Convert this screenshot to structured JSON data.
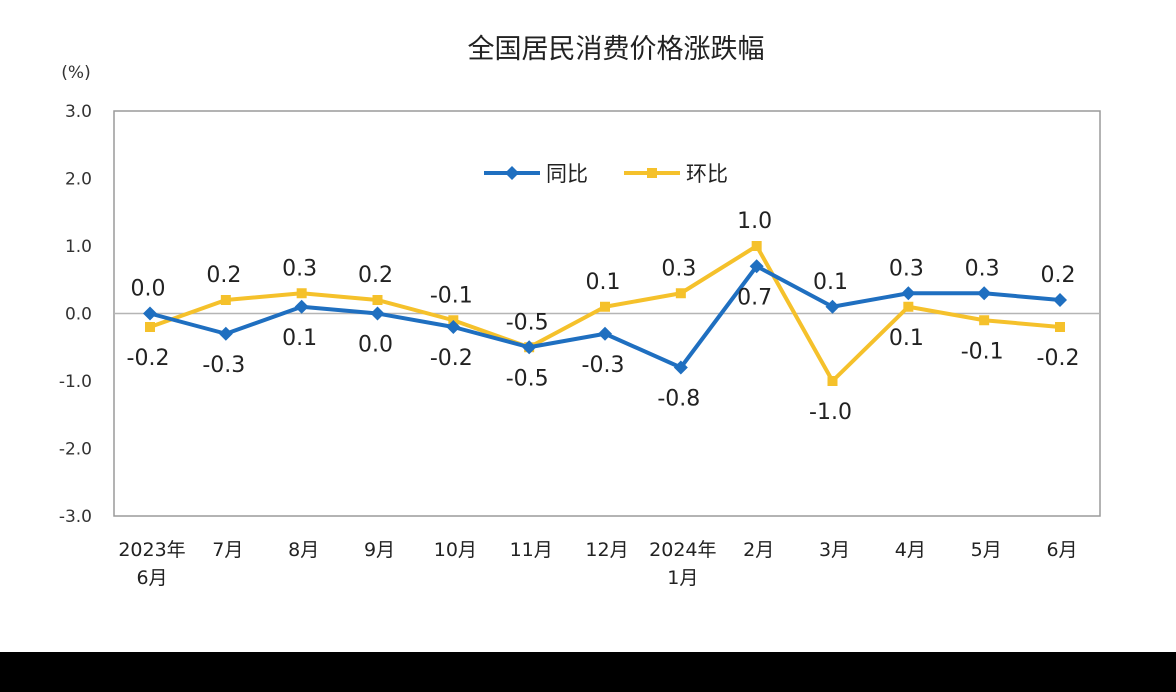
{
  "chart_data": {
    "type": "line",
    "title": "全国居民消费价格涨跌幅",
    "unit_label": "(%)",
    "categories": [
      [
        "2023年",
        "6月"
      ],
      [
        "7月"
      ],
      [
        "8月"
      ],
      [
        "9月"
      ],
      [
        "10月"
      ],
      [
        "11月"
      ],
      [
        "12月"
      ],
      [
        "2024年",
        "1月"
      ],
      [
        "2月"
      ],
      [
        "3月"
      ],
      [
        "4月"
      ],
      [
        "5月"
      ],
      [
        "6月"
      ]
    ],
    "ylim": [
      -3.0,
      3.0
    ],
    "yticks": [
      "3.0",
      "2.0",
      "1.0",
      "0.0",
      "-1.0",
      "-2.0",
      "-3.0"
    ],
    "legend_position": "top-center",
    "series": [
      {
        "name": "同比",
        "color": "#1f6fc0",
        "marker": "diamond",
        "values": [
          0.0,
          -0.3,
          0.1,
          0.0,
          -0.2,
          -0.5,
          -0.3,
          -0.8,
          0.7,
          0.1,
          0.3,
          0.3,
          0.2
        ],
        "labels": [
          "0.0",
          "-0.3",
          "0.1",
          "0.0",
          "-0.2",
          "-0.5",
          "-0.3",
          "-0.8",
          "0.7",
          "0.1",
          "0.3",
          "0.3",
          "0.2"
        ],
        "label_side": [
          "above",
          "below",
          "below",
          "below",
          "below",
          "below",
          "below",
          "below",
          "below",
          "above",
          "above",
          "above",
          "above"
        ]
      },
      {
        "name": "环比",
        "color": "#f5c12b",
        "marker": "square",
        "values": [
          -0.2,
          0.2,
          0.3,
          0.2,
          -0.1,
          -0.5,
          0.1,
          0.3,
          1.0,
          -1.0,
          0.1,
          -0.1,
          -0.2
        ],
        "labels": [
          "-0.2",
          "0.2",
          "0.3",
          "0.2",
          "-0.1",
          "-0.5",
          "0.1",
          "0.3",
          "1.0",
          "-1.0",
          "0.1",
          "-0.1",
          "-0.2"
        ],
        "label_side": [
          "below",
          "above",
          "above",
          "above",
          "above",
          "above",
          "above",
          "above",
          "above",
          "below",
          "below",
          "below",
          "below"
        ]
      }
    ]
  }
}
